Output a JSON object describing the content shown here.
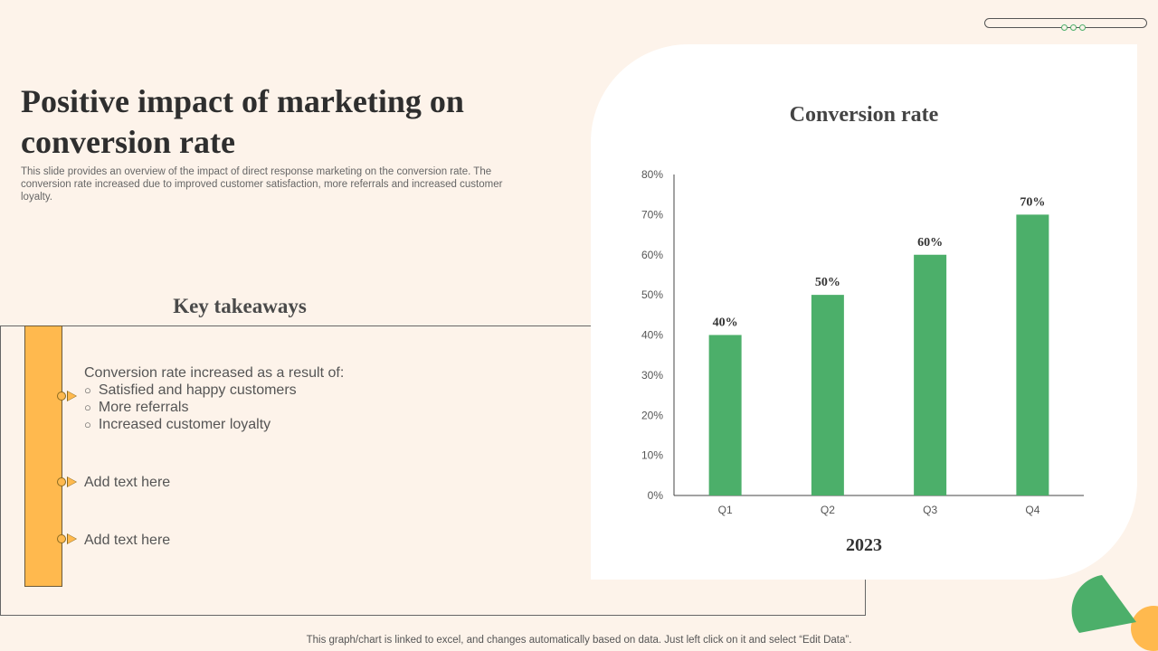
{
  "header": {
    "title": "Positive impact of marketing on conversion rate",
    "description": "This slide provides an overview of the impact of direct response marketing on the conversion rate. The conversion rate increased due to improved customer satisfaction, more referrals and increased customer loyalty."
  },
  "takeaways": {
    "heading": "Key takeaways",
    "items": [
      {
        "text": "Conversion rate increased as a result of:",
        "bullets": [
          "Satisfied and happy customers",
          "More referrals",
          "Increased customer loyalty"
        ]
      },
      {
        "text": "Add text here"
      },
      {
        "text": "Add text here"
      }
    ]
  },
  "chart_data": {
    "type": "bar",
    "title": "Conversion rate",
    "subtitle": "2023",
    "categories": [
      "Q1",
      "Q2",
      "Q3",
      "Q4"
    ],
    "values": [
      40,
      50,
      60,
      70
    ],
    "value_labels": [
      "40%",
      "50%",
      "60%",
      "70%"
    ],
    "y_ticks": [
      "0%",
      "10%",
      "20%",
      "30%",
      "40%",
      "50%",
      "60%",
      "70%",
      "80%"
    ],
    "ylim": [
      0,
      80
    ],
    "y_unit": "%",
    "grid": false,
    "bar_color": "#4caf6a"
  },
  "footer": {
    "note": "This graph/chart is linked to excel, and changes automatically based on data. Just left click on it and select “Edit Data”."
  },
  "colors": {
    "background": "#fdf3ea",
    "accent_orange": "#ffb94e",
    "accent_green": "#4caf6a"
  }
}
